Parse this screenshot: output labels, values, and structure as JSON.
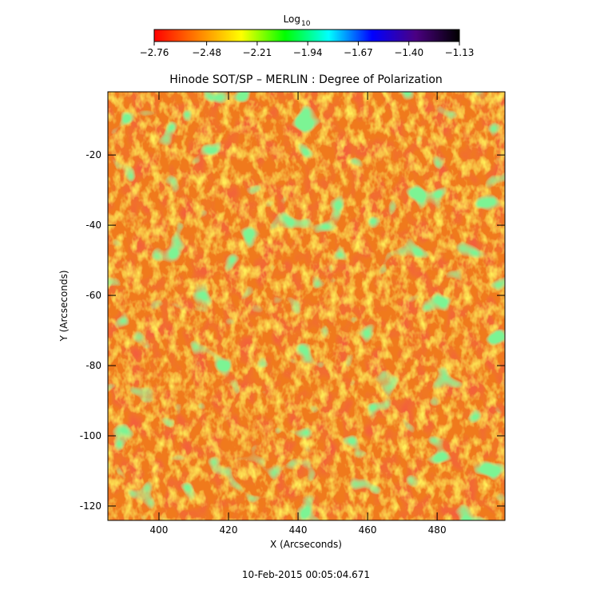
{
  "chart_data": {
    "type": "heatmap",
    "title": "Hinode SOT/SP – MERLIN : Degree of Polarization",
    "x_label": "X (Arcseconds)",
    "y_label": "Y (Arcseconds)",
    "xlim": [
      385.3,
      499.5
    ],
    "xticks": [
      400,
      420,
      440,
      460,
      480
    ],
    "ylim": [
      -124.1,
      -2.0
    ],
    "yticks": [
      -120,
      -100,
      -80,
      -60,
      -40,
      -20
    ],
    "colorbar_label": {
      "text": "Log",
      "subscript": "10"
    },
    "clim": [
      -2.76,
      -1.13
    ],
    "colorbar_ticks": [
      {
        "value": -2.76,
        "label": "−2.76"
      },
      {
        "value": -2.48,
        "label": "−2.48"
      },
      {
        "value": -2.21,
        "label": "−2.21"
      },
      {
        "value": -1.94,
        "label": "−1.94"
      },
      {
        "value": -1.67,
        "label": "−1.67"
      },
      {
        "value": -1.4,
        "label": "−1.40"
      },
      {
        "value": -1.13,
        "label": "−1.13"
      }
    ],
    "colormap": [
      "#ff0000",
      "#ff8000",
      "#ffff00",
      "#00ff00",
      "#00ffff",
      "#0000ff",
      "#4b0082",
      "#000000"
    ],
    "timestamp": "10-Feb-2015 00:05:04.671"
  }
}
